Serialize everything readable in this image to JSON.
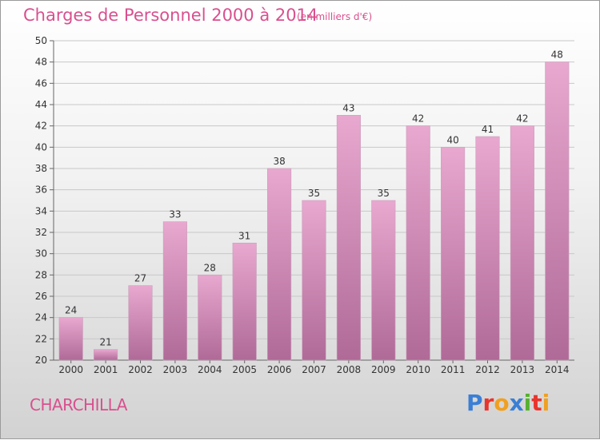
{
  "header": {
    "title": "Charges de Personnel 2000 à 2014",
    "subtitle": "(en milliers d'€)"
  },
  "footer": {
    "commune": "CHARCHILLA",
    "logo": "Proxiti",
    "logo_colors": [
      "#3a7fd5",
      "#e8352d",
      "#f0a020",
      "#3a7fd5",
      "#57b030",
      "#e8352d",
      "#f0a020"
    ]
  },
  "colors": {
    "title": "#d9508e",
    "bar_top": "#e8a8cf",
    "bar_bottom": "#b06a98",
    "grid": "#c8c8c8"
  },
  "chart_data": {
    "type": "bar",
    "categories": [
      "2000",
      "2001",
      "2002",
      "2003",
      "2004",
      "2005",
      "2006",
      "2007",
      "2008",
      "2009",
      "2010",
      "2011",
      "2012",
      "2013",
      "2014"
    ],
    "values": [
      24,
      21,
      27,
      33,
      28,
      31,
      38,
      35,
      43,
      35,
      42,
      40,
      41,
      42,
      48
    ],
    "ylim": [
      20,
      50
    ],
    "yticks": [
      20,
      22,
      24,
      26,
      28,
      30,
      32,
      34,
      36,
      38,
      40,
      42,
      44,
      46,
      48,
      50
    ],
    "grid": true,
    "data_labels": true
  }
}
